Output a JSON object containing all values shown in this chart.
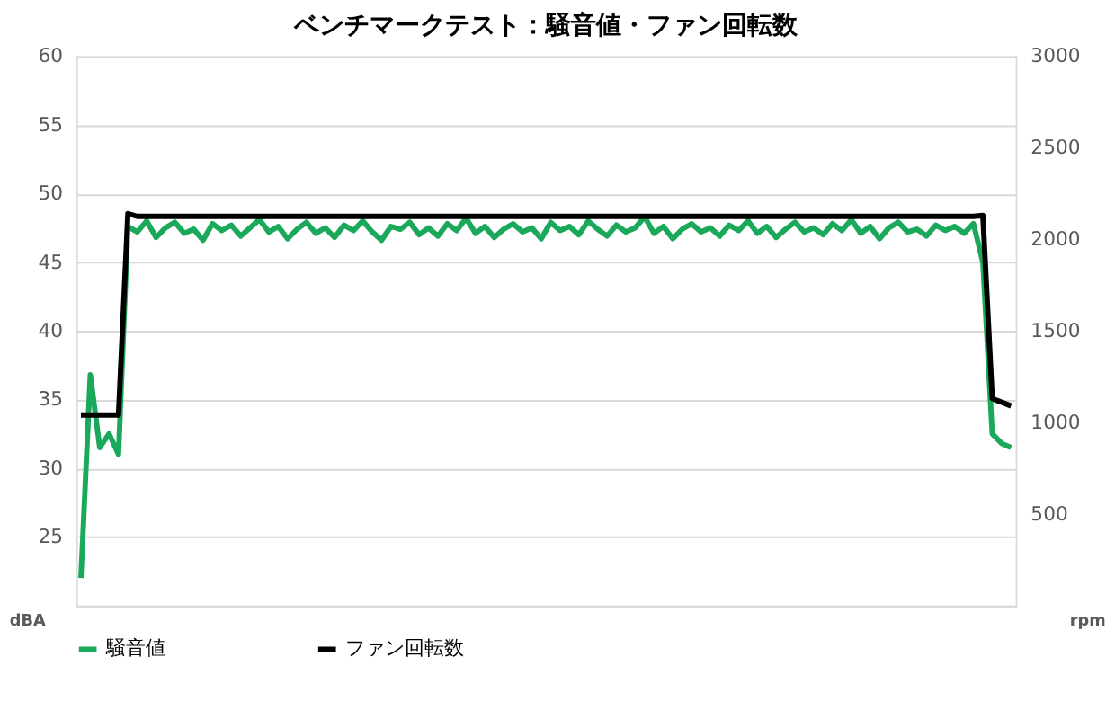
{
  "chart_data": {
    "type": "line",
    "title": "ベンチマークテスト：騒音値・ファン回転数",
    "categories": [
      null,
      null,
      null,
      null,
      null,
      null,
      null,
      null,
      null,
      null,
      null,
      null,
      null,
      null,
      null,
      null,
      null,
      null,
      null,
      null,
      null,
      null,
      null,
      null,
      null,
      null,
      null,
      null,
      null,
      null,
      null,
      null,
      null,
      null,
      null,
      null,
      null,
      null,
      null,
      null,
      null,
      null,
      null,
      null,
      null,
      null,
      null,
      null,
      null,
      null,
      null,
      null,
      null,
      null,
      null,
      null,
      null,
      null,
      null,
      null,
      null,
      null,
      null,
      null,
      null,
      null,
      null,
      null,
      null,
      null,
      null,
      null,
      null,
      null,
      null,
      null,
      null,
      null,
      null,
      null,
      null,
      null,
      null,
      null,
      null,
      null,
      null,
      null,
      null,
      null,
      null,
      null,
      null,
      null,
      null,
      null,
      null,
      null,
      null,
      null
    ],
    "series": [
      {
        "name": "騒音値",
        "color": "#1aa85a",
        "values": [
          22,
          36.8,
          31.5,
          32.5,
          31,
          47.6,
          47.2,
          48,
          46.8,
          47.5,
          47.9,
          47.1,
          47.4,
          46.6,
          47.8,
          47.3,
          47.7,
          46.9,
          47.5,
          48.1,
          47.2,
          47.6,
          46.7,
          47.4,
          47.9,
          47.1,
          47.5,
          46.8,
          47.7,
          47.3,
          48,
          47.2,
          46.6,
          47.6,
          47.4,
          47.9,
          47,
          47.5,
          46.9,
          47.8,
          47.3,
          48.2,
          47.1,
          47.6,
          46.8,
          47.4,
          47.8,
          47.2,
          47.5,
          46.7,
          47.9,
          47.3,
          47.6,
          47,
          48,
          47.4,
          46.9,
          47.7,
          47.2,
          47.5,
          48.3,
          47.1,
          47.6,
          46.7,
          47.4,
          47.8,
          47.2,
          47.5,
          46.9,
          47.7,
          47.3,
          48,
          47.1,
          47.6,
          46.8,
          47.4,
          47.9,
          47.2,
          47.5,
          47,
          47.8,
          47.3,
          48.1,
          47.1,
          47.6,
          46.7,
          47.5,
          47.9,
          47.2,
          47.4,
          46.9,
          47.7,
          47.3,
          47.6,
          47.1,
          47.8,
          45,
          32.5,
          31.8,
          31.5
        ]
      },
      {
        "name": "ファン回転数",
        "axis": "y2",
        "color": "#000000",
        "values": [
          1040,
          1040,
          1040,
          1040,
          1040,
          2140,
          2125,
          2125,
          2125,
          2125,
          2125,
          2125,
          2125,
          2125,
          2125,
          2125,
          2125,
          2125,
          2125,
          2125,
          2125,
          2125,
          2125,
          2125,
          2125,
          2125,
          2125,
          2125,
          2125,
          2125,
          2125,
          2125,
          2125,
          2125,
          2125,
          2125,
          2125,
          2125,
          2125,
          2125,
          2125,
          2125,
          2125,
          2125,
          2125,
          2125,
          2125,
          2125,
          2125,
          2125,
          2125,
          2125,
          2125,
          2125,
          2125,
          2125,
          2125,
          2125,
          2125,
          2125,
          2125,
          2125,
          2125,
          2125,
          2125,
          2125,
          2125,
          2125,
          2125,
          2125,
          2125,
          2125,
          2125,
          2125,
          2125,
          2125,
          2125,
          2125,
          2125,
          2125,
          2125,
          2125,
          2125,
          2125,
          2125,
          2125,
          2125,
          2125,
          2125,
          2125,
          2125,
          2125,
          2125,
          2125,
          2125,
          2125,
          2130,
          1130,
          1110,
          1090
        ]
      }
    ],
    "ylabel": "dBA",
    "y2label": "rpm",
    "ylim": [
      20,
      60
    ],
    "yticks": [
      {
        "value": 20,
        "label": null
      },
      25,
      30,
      35,
      40,
      45,
      50,
      55,
      60
    ],
    "y2lim": [
      0,
      3000
    ],
    "y2ticks": [
      500,
      1000,
      1500,
      2000,
      2500,
      3000
    ],
    "grid": "y",
    "legend": "bottom"
  }
}
